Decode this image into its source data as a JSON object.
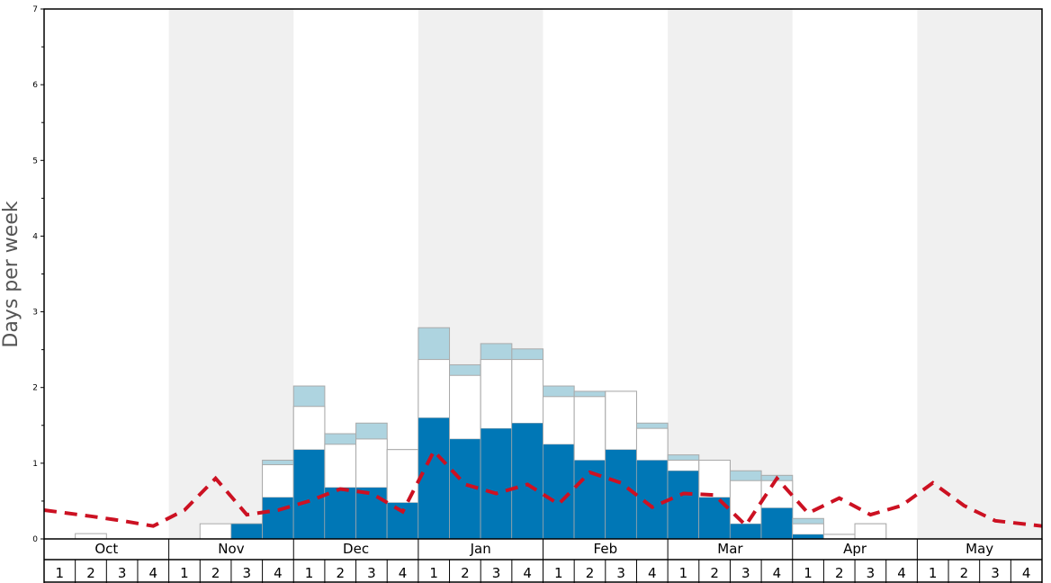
{
  "chart_data": {
    "type": "bar",
    "xlabel": "",
    "ylabel": "Days per week",
    "ylim": [
      0,
      7
    ],
    "y_ticks": [
      "0",
      "1",
      "2",
      "3",
      "4",
      "5",
      "6",
      "7"
    ],
    "months": [
      "Oct",
      "Nov",
      "Dec",
      "Jan",
      "Feb",
      "Mar",
      "Apr",
      "May"
    ],
    "week_labels": [
      "1",
      "2",
      "3",
      "4"
    ],
    "shaded_months": [
      "Nov",
      "Jan",
      "Mar",
      "May"
    ],
    "colors": {
      "dark_bar": "#0077b6",
      "light_bar": "#aed4e0",
      "white_bar": "#ffffff",
      "bar_edge": "#aaaaaa",
      "dashed_line": "#cc1122",
      "shaded_band": "#f0f0f0"
    },
    "series": [
      {
        "key": "dark",
        "values": [
          0,
          0,
          0,
          0,
          0,
          0,
          0.2,
          0.55,
          1.18,
          0.68,
          0.68,
          0.48,
          1.6,
          1.32,
          1.46,
          1.53,
          1.25,
          1.04,
          1.18,
          1.04,
          0.9,
          0.55,
          0.2,
          0.41,
          0.06,
          0,
          0,
          0,
          0,
          0,
          0,
          0
        ]
      },
      {
        "key": "white",
        "values": [
          0,
          0.07,
          0,
          0,
          0,
          0.2,
          0.2,
          0.98,
          1.75,
          1.25,
          1.32,
          1.18,
          2.37,
          2.16,
          2.37,
          2.37,
          1.88,
          1.88,
          1.95,
          1.46,
          1.04,
          1.04,
          0.77,
          0.77,
          0.2,
          0.06,
          0.2,
          0,
          0,
          0,
          0,
          0
        ]
      },
      {
        "key": "light",
        "values": [
          0,
          0,
          0,
          0,
          0,
          0,
          0,
          1.04,
          2.02,
          1.39,
          1.53,
          1.18,
          2.79,
          2.3,
          2.58,
          2.51,
          2.02,
          1.95,
          1.95,
          1.53,
          1.11,
          1.04,
          0.9,
          0.84,
          0.27,
          0.06,
          0.2,
          0,
          0,
          0,
          0,
          0
        ]
      },
      {
        "key": "average",
        "values": [
          0.38,
          0.3,
          0.24,
          0.17,
          0.38,
          0.8,
          0.32,
          0.38,
          0.5,
          0.66,
          0.6,
          0.36,
          1.16,
          0.72,
          0.6,
          0.72,
          0.46,
          0.88,
          0.74,
          0.42,
          0.6,
          0.58,
          0.18,
          0.8,
          0.34,
          0.54,
          0.32,
          0.44,
          0.74,
          0.44,
          0.24,
          0.17
        ]
      }
    ]
  }
}
